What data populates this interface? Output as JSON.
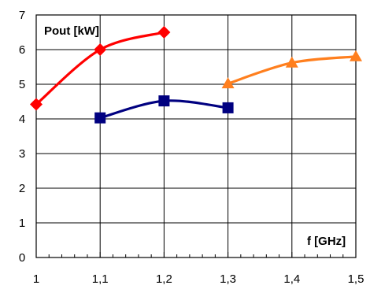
{
  "chart_data": {
    "type": "line",
    "ylabel": "Pout [kW]",
    "xlabel": "f [GHz]",
    "xlim": [
      1.0,
      1.5
    ],
    "ylim": [
      0,
      7
    ],
    "x_ticks": [
      1.0,
      1.1,
      1.2,
      1.3,
      1.4,
      1.5
    ],
    "x_tick_labels": [
      "1",
      "1,1",
      "1,2",
      "1,3",
      "1,4",
      "1,5"
    ],
    "y_ticks": [
      0,
      1,
      2,
      3,
      4,
      5,
      6,
      7
    ],
    "y_tick_labels": [
      "0",
      "1",
      "2",
      "3",
      "4",
      "5",
      "6",
      "7"
    ],
    "grid": true,
    "series": [
      {
        "marker": "diamond",
        "color": "#ff0000",
        "x": [
          1.0,
          1.1,
          1.2
        ],
        "y": [
          4.42,
          6.0,
          6.5
        ]
      },
      {
        "marker": "square",
        "color": "#000080",
        "x": [
          1.1,
          1.2,
          1.3
        ],
        "y": [
          4.03,
          4.52,
          4.32
        ]
      },
      {
        "marker": "triangle",
        "color": "#ff7f1e",
        "x": [
          1.3,
          1.4,
          1.5
        ],
        "y": [
          5.02,
          5.62,
          5.8
        ]
      }
    ]
  }
}
